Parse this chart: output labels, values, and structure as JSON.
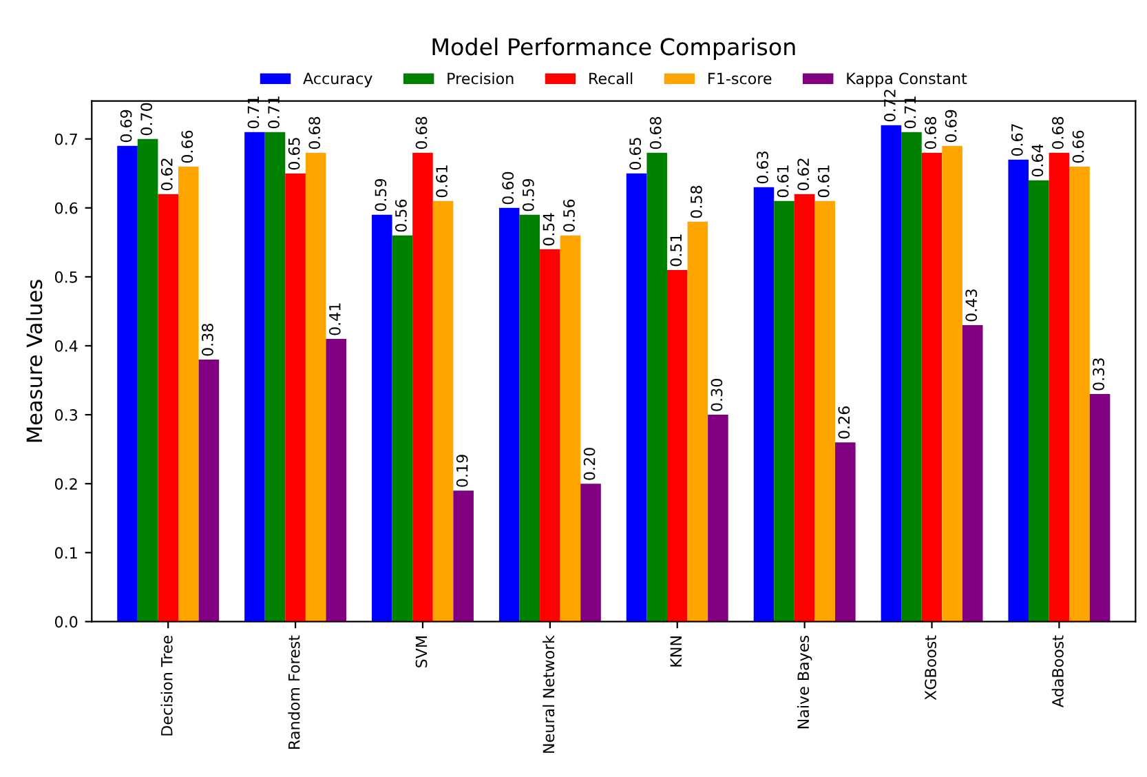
{
  "chart_data": {
    "type": "bar",
    "title": "Model Performance Comparison",
    "ylabel": "Measure Values",
    "categories": [
      "Decision Tree",
      "Random Forest",
      "SVM",
      "Neural Network",
      "KNN",
      "Naive Bayes",
      "XGBoost",
      "AdaBoost"
    ],
    "series": [
      {
        "name": "Accuracy",
        "color": "#0000ff",
        "values": [
          0.69,
          0.71,
          0.59,
          0.6,
          0.65,
          0.63,
          0.72,
          0.67
        ],
        "value_labels": [
          "0.69",
          "0.71",
          "0.59",
          "0.60",
          "0.65",
          "0.63",
          "0.72",
          "0.67"
        ]
      },
      {
        "name": "Precision",
        "color": "#008000",
        "values": [
          0.7,
          0.71,
          0.56,
          0.59,
          0.68,
          0.61,
          0.71,
          0.64
        ],
        "value_labels": [
          "0.70",
          "0.71",
          "0.56",
          "0.59",
          "0.68",
          "0.61",
          "0.71",
          "0.64"
        ]
      },
      {
        "name": "Recall",
        "color": "#ff0000",
        "values": [
          0.62,
          0.65,
          0.68,
          0.54,
          0.51,
          0.62,
          0.68,
          0.68
        ],
        "value_labels": [
          "0.62",
          "0.65",
          "0.68",
          "0.54",
          "0.51",
          "0.62",
          "0.68",
          "0.68"
        ]
      },
      {
        "name": "F1-score",
        "color": "#ffa500",
        "values": [
          0.66,
          0.68,
          0.61,
          0.56,
          0.58,
          0.61,
          0.69,
          0.66
        ],
        "value_labels": [
          "0.66",
          "0.68",
          "0.61",
          "0.56",
          "0.58",
          "0.61",
          "0.69",
          "0.66"
        ]
      },
      {
        "name": "Kappa Constant",
        "color": "#800080",
        "values": [
          0.38,
          0.41,
          0.19,
          0.2,
          0.3,
          0.26,
          0.43,
          0.33
        ],
        "value_labels": [
          "0.38",
          "0.41",
          "0.19",
          "0.20",
          "0.30",
          "0.26",
          "0.43",
          "0.33"
        ]
      }
    ],
    "ylim": [
      0,
      0.755
    ],
    "yticks": [
      {
        "value": 0,
        "label": "0.0"
      },
      0.1,
      0.2,
      0.3,
      0.4,
      0.5,
      0.6,
      0.7
    ],
    "legend": "top"
  }
}
